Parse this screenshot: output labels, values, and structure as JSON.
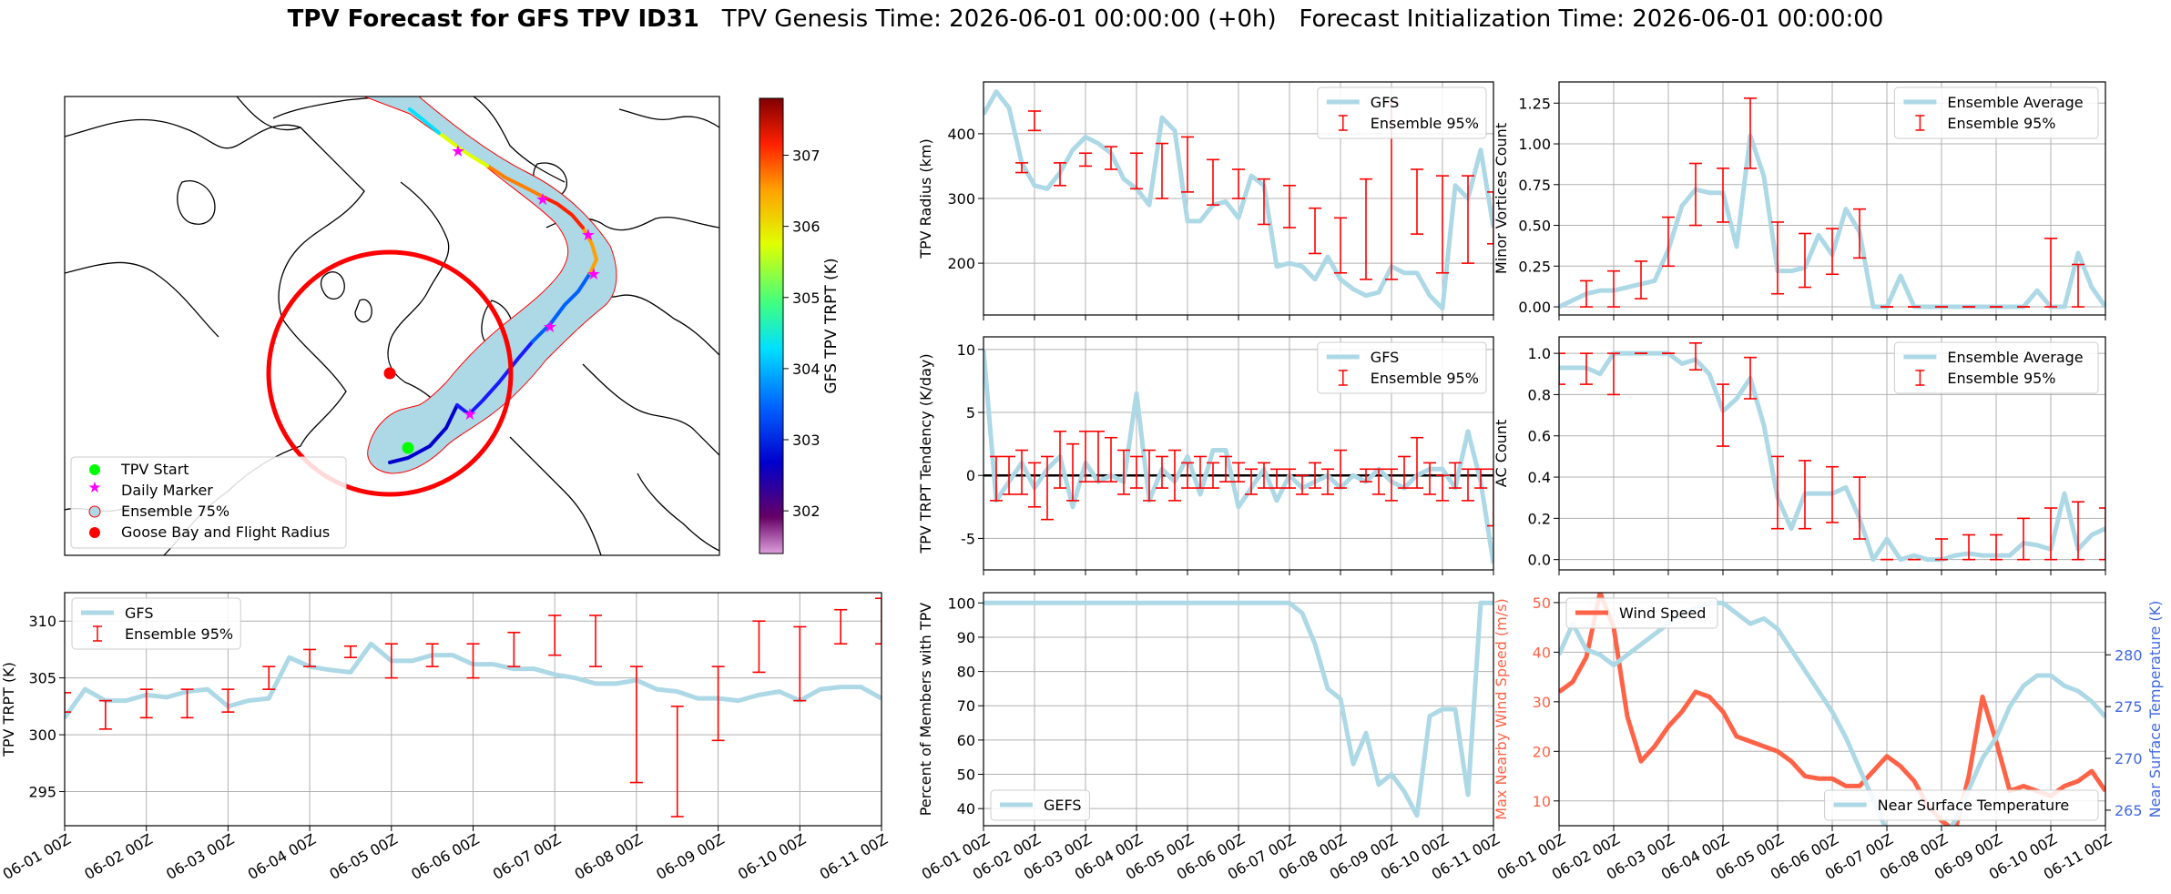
{
  "title": {
    "bold": "TPV Forecast for GFS TPV ID31",
    "genesis": "TPV Genesis Time: 2026-06-01 00:00:00 (+0h)",
    "init": "Forecast Initialization Time: 2026-06-01 00:00:00"
  },
  "colors": {
    "ens_line": "#add8e6",
    "errorbar": "#ff0000",
    "wind": "#ff6347",
    "temp_axis": "#4169e1",
    "map_track_fill": "#add8e6",
    "map_circle": "#ff0000"
  },
  "time_ticks": [
    "06-01 00Z",
    "06-02 00Z",
    "06-03 00Z",
    "06-04 00Z",
    "06-05 00Z",
    "06-06 00Z",
    "06-07 00Z",
    "06-08 00Z",
    "06-09 00Z",
    "06-10 00Z",
    "06-11 00Z"
  ],
  "map": {
    "legend": [
      {
        "label": "TPV Start",
        "marker": "dot",
        "color": "#00ff00"
      },
      {
        "label": "Daily Marker",
        "marker": "star",
        "color": "#ff00ff"
      },
      {
        "label": "Ensemble 75%",
        "marker": "ring",
        "color": "#add8e6"
      },
      {
        "label": "Goose Bay and Flight Radius",
        "marker": "dot",
        "color": "#ff0000"
      }
    ],
    "colorbar": {
      "label": "GFS TPV TRPT (K)",
      "ticks": [
        302,
        303,
        304,
        305,
        306,
        307
      ],
      "range": [
        301.4,
        307.8
      ]
    }
  },
  "chart_data": [
    {
      "id": "radius",
      "type": "line",
      "ylabel": "TPV Radius (km)",
      "ylim": [
        120,
        480
      ],
      "yticks": [
        200,
        300,
        400
      ],
      "legend": [
        "GFS",
        "Ensemble 95%"
      ],
      "x_days": [
        0,
        0.25,
        0.5,
        0.75,
        1,
        1.25,
        1.5,
        1.75,
        2,
        2.25,
        2.5,
        2.75,
        3,
        3.25,
        3.5,
        3.75,
        4,
        4.25,
        4.5,
        4.75,
        5,
        5.25,
        5.5,
        5.75,
        6,
        6.25,
        6.5,
        6.75,
        7,
        7.25,
        7.5,
        7.75,
        8,
        8.25,
        8.5,
        8.75,
        9,
        9.25,
        9.5,
        9.75,
        10
      ],
      "y": [
        430,
        465,
        440,
        355,
        320,
        315,
        340,
        375,
        395,
        385,
        370,
        330,
        315,
        290,
        425,
        405,
        265,
        265,
        290,
        295,
        270,
        335,
        320,
        195,
        200,
        195,
        175,
        210,
        175,
        160,
        150,
        155,
        195,
        185,
        185,
        150,
        130,
        320,
        300,
        375,
        255
      ],
      "errorbars": [
        [
          0.75,
          340,
          355
        ],
        [
          1,
          405,
          435
        ],
        [
          1.5,
          320,
          355
        ],
        [
          2,
          350,
          370
        ],
        [
          2.5,
          345,
          380
        ],
        [
          3,
          315,
          370
        ],
        [
          3.5,
          300,
          385
        ],
        [
          4,
          310,
          395
        ],
        [
          4.5,
          290,
          360
        ],
        [
          5,
          300,
          345
        ],
        [
          5.5,
          260,
          330
        ],
        [
          6,
          255,
          320
        ],
        [
          6.5,
          215,
          285
        ],
        [
          7,
          185,
          270
        ],
        [
          7.5,
          175,
          330
        ],
        [
          8,
          175,
          450
        ],
        [
          8.5,
          245,
          345
        ],
        [
          9,
          185,
          335
        ],
        [
          9.5,
          200,
          335
        ],
        [
          10,
          230,
          310
        ]
      ]
    },
    {
      "id": "tendency",
      "type": "line",
      "ylabel": "TPV TRPT Tendency (K/day)",
      "ylim": [
        -7.5,
        11
      ],
      "yticks": [
        -5,
        0,
        5,
        10
      ],
      "legend": [
        "GFS",
        "Ensemble 95%"
      ],
      "x_days": [
        0,
        0.25,
        0.5,
        0.75,
        1,
        1.25,
        1.5,
        1.75,
        2,
        2.25,
        2.5,
        2.75,
        3,
        3.25,
        3.5,
        3.75,
        4,
        4.25,
        4.5,
        4.75,
        5,
        5.25,
        5.5,
        5.75,
        6,
        6.25,
        6.5,
        6.75,
        7,
        7.25,
        7.5,
        7.75,
        8,
        8.25,
        8.5,
        8.75,
        9,
        9.25,
        9.5,
        9.75,
        10
      ],
      "y": [
        10,
        -2,
        -0.5,
        1,
        -1,
        0.5,
        1.5,
        -2.5,
        1,
        -0.5,
        0,
        -0.5,
        6.5,
        -2,
        0.5,
        -0.5,
        1.5,
        -1.5,
        2,
        2,
        -2.5,
        -1,
        0.5,
        -2,
        0,
        -1,
        -0.5,
        0,
        -1,
        0,
        -0.5,
        0.5,
        -0.5,
        -1,
        0,
        0.5,
        0.5,
        -1,
        3.5,
        -0.5,
        -7
      ],
      "errorbars": [
        [
          0.25,
          -2,
          1.5
        ],
        [
          0.5,
          -1.5,
          1.5
        ],
        [
          0.75,
          -1.5,
          2
        ],
        [
          1,
          -2.5,
          1
        ],
        [
          1.25,
          -3.5,
          1.5
        ],
        [
          1.5,
          -1,
          3.5
        ],
        [
          1.75,
          -2,
          2.5
        ],
        [
          2,
          -0.5,
          3.5
        ],
        [
          2.25,
          -0.5,
          3.5
        ],
        [
          2.5,
          -0.5,
          3
        ],
        [
          2.75,
          -1.5,
          2
        ],
        [
          3,
          -1,
          1.5
        ],
        [
          3.25,
          -2,
          2
        ],
        [
          3.5,
          -1,
          1.5
        ],
        [
          3.75,
          -2,
          2
        ],
        [
          4,
          -1,
          1
        ],
        [
          4.25,
          -1,
          1.5
        ],
        [
          4.5,
          -1,
          1
        ],
        [
          4.75,
          -0.5,
          1.5
        ],
        [
          5,
          -0.5,
          1
        ],
        [
          5.25,
          -1.5,
          0.5
        ],
        [
          5.5,
          -1,
          1
        ],
        [
          5.75,
          -1,
          0.5
        ],
        [
          6,
          -1,
          0.5
        ],
        [
          6.25,
          -1.5,
          0
        ],
        [
          6.5,
          -1,
          1
        ],
        [
          6.75,
          -1.5,
          0.5
        ],
        [
          7,
          -1,
          2
        ],
        [
          7.5,
          -0.5,
          0.5
        ],
        [
          7.75,
          -1.5,
          0.5
        ],
        [
          8,
          -2,
          0.5
        ],
        [
          8.25,
          -1,
          1.5
        ],
        [
          8.5,
          -1,
          3
        ],
        [
          8.75,
          -1.5,
          1
        ],
        [
          9,
          -2,
          0
        ],
        [
          9.25,
          -1,
          1
        ],
        [
          9.5,
          -2,
          0.5
        ],
        [
          9.75,
          -1,
          0.5
        ],
        [
          10,
          -4,
          0.5
        ]
      ]
    },
    {
      "id": "minor",
      "type": "line",
      "ylabel": "Minor Vortices Count",
      "ylim": [
        -0.05,
        1.38
      ],
      "yticks": [
        0.0,
        0.25,
        0.5,
        0.75,
        1.0,
        1.25
      ],
      "legend": [
        "Ensemble Average",
        "Ensemble 95%"
      ],
      "x_days": [
        0,
        0.25,
        0.5,
        0.75,
        1,
        1.25,
        1.5,
        1.75,
        2,
        2.25,
        2.5,
        2.75,
        3,
        3.25,
        3.5,
        3.75,
        4,
        4.25,
        4.5,
        4.75,
        5,
        5.25,
        5.5,
        5.75,
        6,
        6.25,
        6.5,
        6.75,
        7,
        7.25,
        7.5,
        7.75,
        8,
        8.25,
        8.5,
        8.75,
        9,
        9.25,
        9.5,
        9.75,
        10
      ],
      "y": [
        0,
        0.04,
        0.08,
        0.1,
        0.1,
        0.12,
        0.14,
        0.16,
        0.35,
        0.62,
        0.72,
        0.7,
        0.7,
        0.37,
        1.05,
        0.8,
        0.22,
        0.22,
        0.24,
        0.44,
        0.32,
        0.6,
        0.46,
        0,
        0,
        0.19,
        0,
        0,
        0,
        0,
        0,
        0,
        0,
        0,
        0,
        0.1,
        0,
        0,
        0.33,
        0.12,
        0
      ],
      "errorbars": [
        [
          0.5,
          0,
          0.16
        ],
        [
          1,
          0,
          0.22
        ],
        [
          1.5,
          0.05,
          0.28
        ],
        [
          2,
          0.25,
          0.55
        ],
        [
          2.5,
          0.5,
          0.88
        ],
        [
          3,
          0.52,
          0.85
        ],
        [
          3.5,
          0.85,
          1.28
        ],
        [
          4,
          0.08,
          0.52
        ],
        [
          4.5,
          0.12,
          0.45
        ],
        [
          5,
          0.2,
          0.48
        ],
        [
          5.5,
          0.3,
          0.6
        ],
        [
          6,
          0,
          0
        ],
        [
          6.5,
          0,
          0
        ],
        [
          7,
          0,
          0
        ],
        [
          7.5,
          0,
          0
        ],
        [
          8,
          0,
          0
        ],
        [
          8.5,
          0,
          0
        ],
        [
          9,
          0,
          0.42
        ],
        [
          9.5,
          0,
          0.26
        ]
      ]
    },
    {
      "id": "ac",
      "type": "line",
      "ylabel": "AC Count",
      "ylim": [
        -0.05,
        1.08
      ],
      "yticks": [
        0.0,
        0.2,
        0.4,
        0.6,
        0.8,
        1.0
      ],
      "legend": [
        "Ensemble Average",
        "Ensemble 95%"
      ],
      "x_days": [
        0,
        0.25,
        0.5,
        0.75,
        1,
        1.25,
        1.5,
        1.75,
        2,
        2.25,
        2.5,
        2.75,
        3,
        3.25,
        3.5,
        3.75,
        4,
        4.25,
        4.5,
        4.75,
        5,
        5.25,
        5.5,
        5.75,
        6,
        6.25,
        6.5,
        6.75,
        7,
        7.25,
        7.5,
        7.75,
        8,
        8.25,
        8.5,
        8.75,
        9,
        9.25,
        9.5,
        9.75,
        10
      ],
      "y": [
        0.93,
        0.93,
        0.93,
        0.9,
        1,
        1,
        1,
        1,
        1,
        0.95,
        0.97,
        0.9,
        0.72,
        0.78,
        0.88,
        0.65,
        0.3,
        0.15,
        0.32,
        0.32,
        0.32,
        0.35,
        0.2,
        0,
        0.1,
        0,
        0.02,
        0,
        0,
        0.02,
        0.03,
        0.02,
        0.02,
        0.02,
        0.08,
        0.07,
        0.05,
        0.32,
        0.05,
        0.12,
        0.15
      ],
      "errorbars": [
        [
          0,
          0.85,
          1
        ],
        [
          0.5,
          0.85,
          1
        ],
        [
          1,
          0.8,
          1
        ],
        [
          1.5,
          1,
          1
        ],
        [
          2,
          1,
          1
        ],
        [
          2.5,
          0.92,
          1.05
        ],
        [
          3,
          0.55,
          0.85
        ],
        [
          3.5,
          0.78,
          0.98
        ],
        [
          4,
          0.15,
          0.5
        ],
        [
          4.5,
          0.15,
          0.48
        ],
        [
          5,
          0.18,
          0.45
        ],
        [
          5.5,
          0.1,
          0.4
        ],
        [
          6,
          0,
          0
        ],
        [
          6.5,
          0,
          0
        ],
        [
          7,
          0,
          0.1
        ],
        [
          7.5,
          0,
          0.12
        ],
        [
          8,
          0,
          0.12
        ],
        [
          8.5,
          0,
          0.2
        ],
        [
          9,
          0,
          0.25
        ],
        [
          9.5,
          0,
          0.28
        ],
        [
          10,
          0,
          0.25
        ]
      ]
    },
    {
      "id": "trpt",
      "type": "line",
      "ylabel": "TPV TRPT (K)",
      "ylim": [
        292,
        312.5
      ],
      "yticks": [
        295,
        300,
        305,
        310
      ],
      "legend": [
        "GFS",
        "Ensemble 95%"
      ],
      "x_days": [
        0,
        0.25,
        0.5,
        0.75,
        1,
        1.25,
        1.5,
        1.75,
        2,
        2.25,
        2.5,
        2.75,
        3,
        3.25,
        3.5,
        3.75,
        4,
        4.25,
        4.5,
        4.75,
        5,
        5.25,
        5.5,
        5.75,
        6,
        6.25,
        6.5,
        6.75,
        7,
        7.25,
        7.5,
        7.75,
        8,
        8.25,
        8.5,
        8.75,
        9,
        9.25,
        9.5,
        9.75,
        10
      ],
      "y": [
        301.5,
        304,
        303,
        303,
        303.5,
        303.3,
        303.8,
        304,
        302.5,
        303,
        303.2,
        306.8,
        306,
        305.7,
        305.5,
        308,
        306.5,
        306.5,
        307,
        307,
        306.2,
        306.2,
        305.8,
        305.8,
        305.3,
        305,
        304.5,
        304.5,
        304.8,
        304,
        303.8,
        303.2,
        303.2,
        303,
        303.5,
        303.8,
        303,
        304,
        304.2,
        304.2,
        303.2
      ],
      "errorbars": [
        [
          0,
          302,
          303.7
        ],
        [
          0.5,
          300.5,
          303
        ],
        [
          1,
          301.5,
          304
        ],
        [
          1.5,
          301.5,
          304
        ],
        [
          2,
          302,
          304
        ],
        [
          2.5,
          304,
          306
        ],
        [
          3,
          306,
          307.5
        ],
        [
          3.5,
          306.8,
          307.8
        ],
        [
          4,
          305,
          308
        ],
        [
          4.5,
          306,
          308
        ],
        [
          5,
          305,
          308
        ],
        [
          5.5,
          306,
          309
        ],
        [
          6,
          307,
          310.5
        ],
        [
          6.5,
          306,
          310.5
        ],
        [
          7,
          295.8,
          306
        ],
        [
          7.5,
          292.8,
          302.5
        ],
        [
          8,
          299.5,
          306
        ],
        [
          8.5,
          305.5,
          310
        ],
        [
          9,
          303,
          309.5
        ],
        [
          9.5,
          308,
          311
        ],
        [
          10,
          308,
          312
        ]
      ]
    },
    {
      "id": "members",
      "type": "line",
      "ylabel": "Percent of Members with TPV",
      "ylim": [
        35,
        103
      ],
      "yticks": [
        40,
        50,
        60,
        70,
        80,
        90,
        100
      ],
      "legend": [
        "GEFS"
      ],
      "x_days": [
        0,
        0.25,
        0.5,
        0.75,
        1,
        1.25,
        1.5,
        1.75,
        2,
        2.25,
        2.5,
        2.75,
        3,
        3.25,
        3.5,
        3.75,
        4,
        4.25,
        4.5,
        4.75,
        5,
        5.25,
        5.5,
        5.75,
        6,
        6.25,
        6.5,
        6.75,
        7,
        7.25,
        7.5,
        7.75,
        8,
        8.25,
        8.5,
        8.75,
        9,
        9.25,
        9.5,
        9.75,
        10
      ],
      "y": [
        100,
        100,
        100,
        100,
        100,
        100,
        100,
        100,
        100,
        100,
        100,
        100,
        100,
        100,
        100,
        100,
        100,
        100,
        100,
        100,
        100,
        100,
        100,
        100,
        100,
        97,
        88,
        75,
        72,
        53,
        62,
        47,
        50,
        45,
        38,
        67,
        69,
        69,
        44,
        100,
        100
      ]
    },
    {
      "id": "wind_temp",
      "type": "line",
      "ylabel": "Max Nearby Wind Speed (m/s)",
      "ylim": [
        5,
        52
      ],
      "yticks": [
        10,
        20,
        30,
        40,
        50
      ],
      "ylabel2": "Near Surface Temperature (K)",
      "ylim2": [
        263.5,
        286
      ],
      "yticks2": [
        265,
        270,
        275,
        280
      ],
      "legend": [
        "Wind Speed",
        "Near Surface Temperature"
      ],
      "x_days": [
        0,
        0.25,
        0.5,
        0.75,
        1,
        1.25,
        1.5,
        1.75,
        2,
        2.25,
        2.5,
        2.75,
        3,
        3.25,
        3.5,
        3.75,
        4,
        4.25,
        4.5,
        4.75,
        5,
        5.25,
        5.5,
        5.75,
        6,
        6.25,
        6.5,
        6.75,
        7,
        7.25,
        7.5,
        7.75,
        8,
        8.25,
        8.5,
        8.75,
        9,
        9.25,
        9.5,
        9.75,
        10
      ],
      "wind": [
        32,
        34,
        39,
        52,
        45,
        27,
        18,
        21,
        25,
        28,
        32,
        31,
        28,
        23,
        22,
        21,
        20,
        18,
        15,
        14.5,
        14.5,
        13,
        13,
        16,
        19,
        17,
        14,
        9,
        6,
        4,
        15,
        31,
        22,
        12,
        13,
        12,
        11,
        13,
        14,
        16,
        12
      ],
      "temp": [
        280,
        283,
        280.5,
        280,
        279,
        280,
        281,
        282,
        283,
        284,
        284.5,
        285,
        285,
        284,
        283,
        283.5,
        282.5,
        280.5,
        278.5,
        276.5,
        274.5,
        272,
        269,
        266,
        263,
        262,
        261,
        261,
        262,
        264,
        267,
        270,
        272,
        275,
        277,
        278,
        278,
        277,
        276.5,
        275.5,
        274
      ]
    }
  ]
}
